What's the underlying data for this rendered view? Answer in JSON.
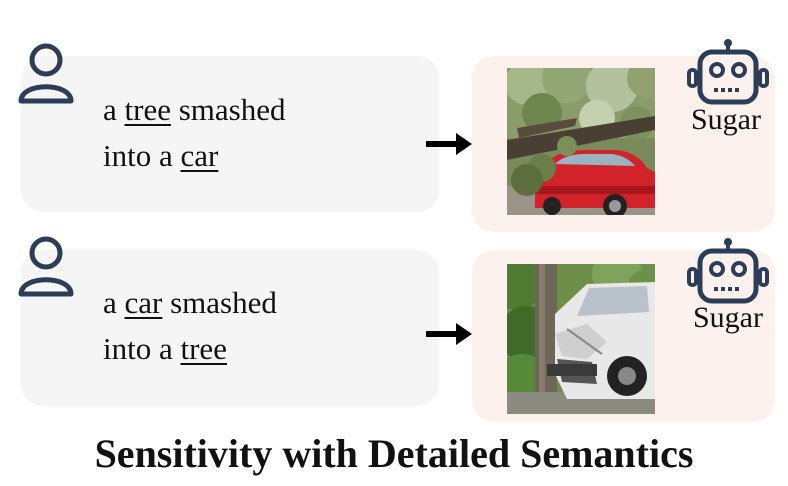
{
  "rows": [
    {
      "prompt_lines": [
        [
          {
            "t": "a ",
            "u": false
          },
          {
            "t": "tree",
            "u": true
          },
          {
            "t": " smashed",
            "u": false
          }
        ],
        [
          {
            "t": "into a ",
            "u": false
          },
          {
            "t": "car",
            "u": true
          }
        ]
      ],
      "model_label": "Sugar",
      "image_desc": "tree fallen onto red car"
    },
    {
      "prompt_lines": [
        [
          {
            "t": "a ",
            "u": false
          },
          {
            "t": "car",
            "u": true
          },
          {
            "t": " smashed",
            "u": false
          }
        ],
        [
          {
            "t": "into a ",
            "u": false
          },
          {
            "t": "tree",
            "u": true
          }
        ]
      ],
      "model_label": "Sugar",
      "image_desc": "white car crashed into tree"
    }
  ],
  "title": "Sensitivity with Detailed Semantics",
  "icons": {
    "user": "user-icon",
    "robot": "robot-icon",
    "arrow": "arrow-right-icon"
  },
  "colors": {
    "icon": "#2c3e57",
    "prompt_bg": "#f5f5f5",
    "result_bg": "#fdf1ee"
  }
}
